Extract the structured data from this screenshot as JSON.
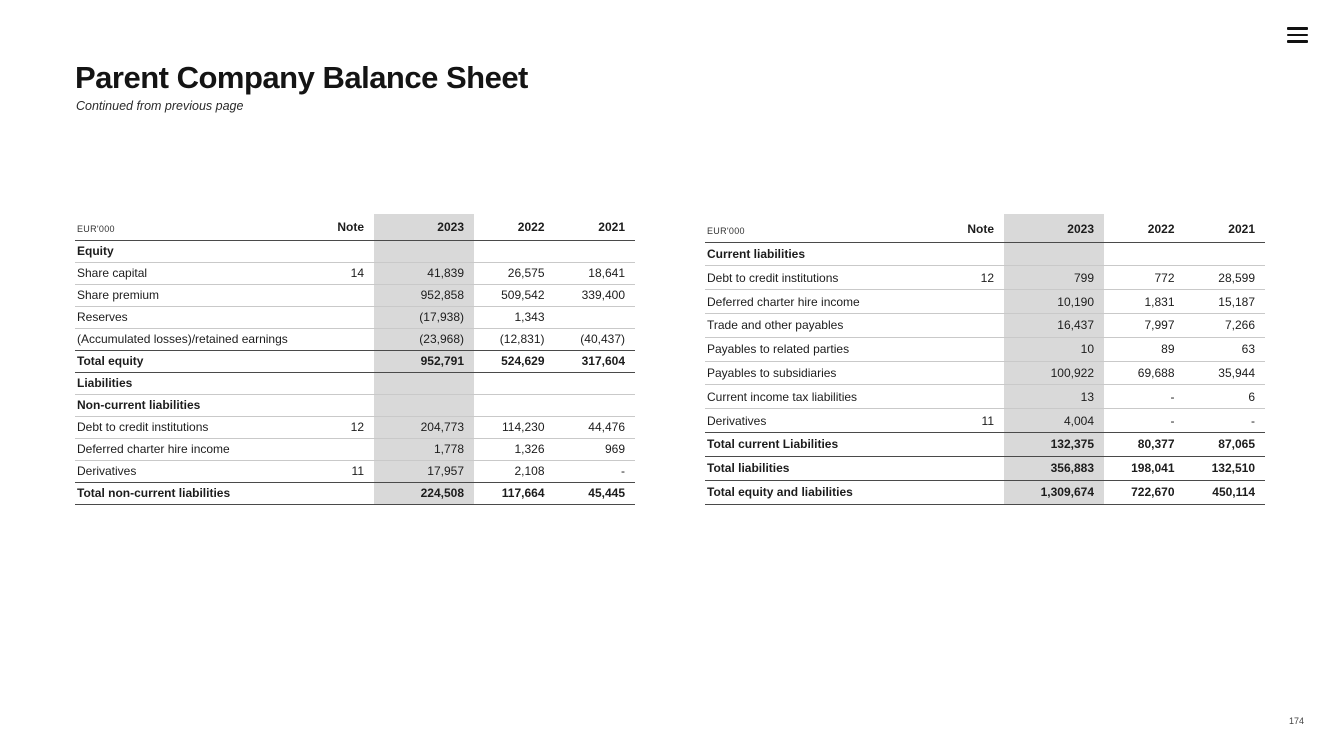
{
  "page": {
    "title": "Parent Company Balance Sheet",
    "subtitle": "Continued from previous page",
    "page_number": "174"
  },
  "colors": {
    "highlight_column": "#d9d9d9",
    "strong_border": "#4a4a4a",
    "light_border": "#c9c9c9"
  },
  "tables": [
    {
      "id": "left",
      "unit_label": "EUR'000",
      "note_header": "Note",
      "year_headers": [
        "2023",
        "2022",
        "2021"
      ],
      "highlight_year": "2023",
      "rows": [
        {
          "type": "section",
          "label": "Equity",
          "note": "",
          "values": [
            "",
            "",
            ""
          ]
        },
        {
          "type": "data",
          "label": "Share capital",
          "note": "14",
          "values": [
            "41,839",
            "26,575",
            "18,641"
          ]
        },
        {
          "type": "data",
          "label": "Share premium",
          "note": "",
          "values": [
            "952,858",
            "509,542",
            "339,400"
          ]
        },
        {
          "type": "data",
          "label": "Reserves",
          "note": "",
          "values": [
            "(17,938)",
            "1,343",
            ""
          ]
        },
        {
          "type": "data",
          "label": "(Accumulated losses)/retained earnings",
          "note": "",
          "values": [
            "(23,968)",
            "(12,831)",
            "(40,437)"
          ]
        },
        {
          "type": "total",
          "label": "Total equity",
          "note": "",
          "values": [
            "952,791",
            "524,629",
            "317,604"
          ]
        },
        {
          "type": "section",
          "label": "Liabilities",
          "note": "",
          "values": [
            "",
            "",
            ""
          ]
        },
        {
          "type": "section",
          "label": "Non-current liabilities",
          "note": "",
          "values": [
            "",
            "",
            ""
          ]
        },
        {
          "type": "data",
          "label": "Debt to credit institutions",
          "note": "12",
          "values": [
            "204,773",
            "114,230",
            "44,476"
          ]
        },
        {
          "type": "data",
          "label": "Deferred charter hire income",
          "note": "",
          "values": [
            "1,778",
            "1,326",
            "969"
          ]
        },
        {
          "type": "data",
          "label": "Derivatives",
          "note": "11",
          "values": [
            "17,957",
            "2,108",
            "-"
          ]
        },
        {
          "type": "total",
          "label": "Total non-current liabilities",
          "note": "",
          "values": [
            "224,508",
            "117,664",
            "45,445"
          ]
        }
      ]
    },
    {
      "id": "right",
      "unit_label": "EUR'000",
      "note_header": "Note",
      "year_headers": [
        "2023",
        "2022",
        "2021"
      ],
      "highlight_year": "2023",
      "rows": [
        {
          "type": "section",
          "label": "Current liabilities",
          "note": "",
          "values": [
            "",
            "",
            ""
          ]
        },
        {
          "type": "data",
          "label": "Debt to credit institutions",
          "note": "12",
          "values": [
            "799",
            "772",
            "28,599"
          ]
        },
        {
          "type": "data",
          "label": "Deferred charter hire income",
          "note": "",
          "values": [
            "10,190",
            "1,831",
            "15,187"
          ]
        },
        {
          "type": "data",
          "label": "Trade and other payables",
          "note": "",
          "values": [
            "16,437",
            "7,997",
            "7,266"
          ]
        },
        {
          "type": "data",
          "label": "Payables to related parties",
          "note": "",
          "values": [
            "10",
            "89",
            "63"
          ]
        },
        {
          "type": "data",
          "label": "Payables to subsidiaries",
          "note": "",
          "values": [
            "100,922",
            "69,688",
            "35,944"
          ]
        },
        {
          "type": "data",
          "label": "Current income tax liabilities",
          "note": "",
          "values": [
            "13",
            "-",
            "6"
          ]
        },
        {
          "type": "data",
          "label": "Derivatives",
          "note": "11",
          "values": [
            "4,004",
            "-",
            "-"
          ]
        },
        {
          "type": "total",
          "label": "Total current Liabilities",
          "note": "",
          "values": [
            "132,375",
            "80,377",
            "87,065"
          ]
        },
        {
          "type": "total",
          "label": "Total liabilities",
          "note": "",
          "values": [
            "356,883",
            "198,041",
            "132,510"
          ]
        },
        {
          "type": "total",
          "label": "Total equity and liabilities",
          "note": "",
          "values": [
            "1,309,674",
            "722,670",
            "450,114"
          ]
        }
      ]
    }
  ]
}
